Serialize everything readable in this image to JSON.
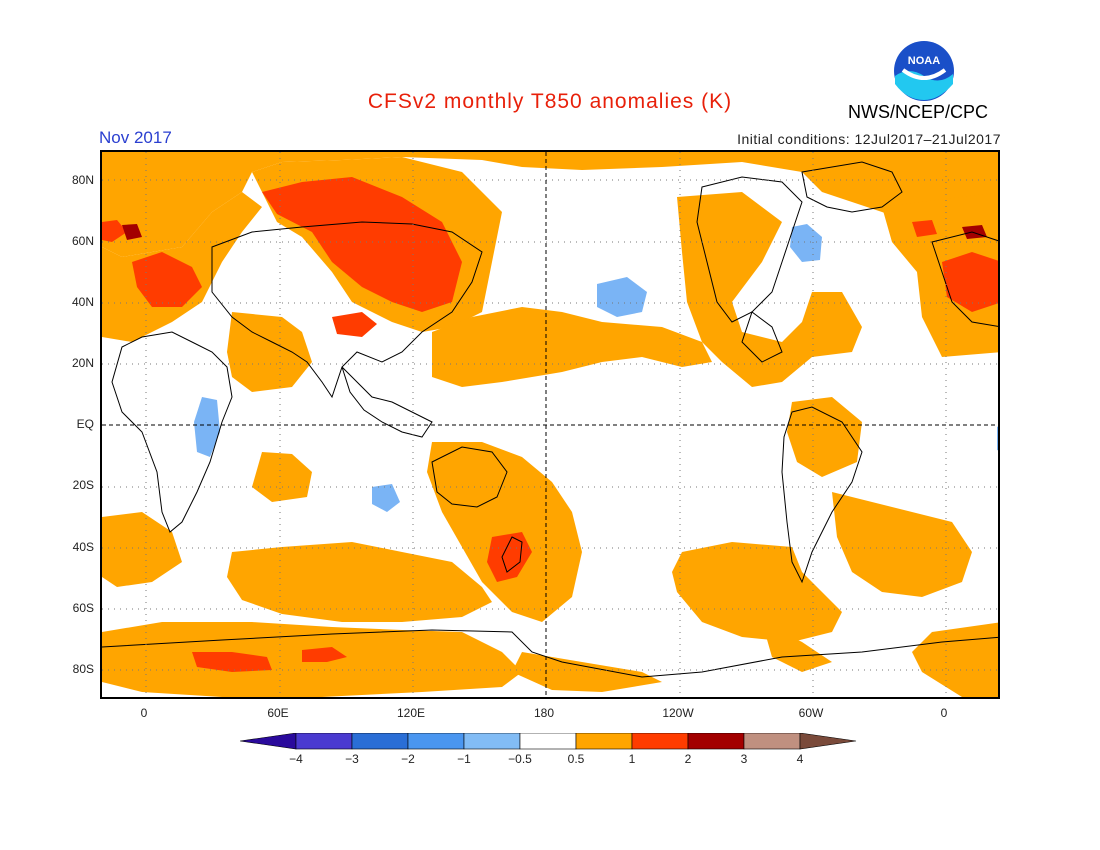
{
  "title": "CFSv2 monthly T850 anomalies (K)",
  "month": "Nov 2017",
  "initial_conditions": "Initial conditions: 12Jul2017–21Jul2017",
  "organization": "NWS/NCEP/CPC",
  "logo": {
    "text": "NOAA"
  },
  "colors": {
    "weak_warm": "#ffa500",
    "warm": "#ff3c00",
    "hot": "#a30000",
    "weak_cool": "#7ab4f5",
    "cool": "#3c8cf0"
  },
  "y_axis": {
    "labels": [
      "80N",
      "60N",
      "40N",
      "20N",
      "EQ",
      "20S",
      "40S",
      "60S",
      "80S"
    ]
  },
  "x_axis": {
    "labels": [
      "0",
      "60E",
      "120E",
      "180",
      "120W",
      "60W",
      "0"
    ]
  },
  "colorbar": {
    "labels": [
      "−4",
      "−3",
      "−2",
      "−1",
      "−0.5",
      "0.5",
      "1",
      "2",
      "3",
      "4"
    ],
    "colors": [
      "#2a0a9c",
      "#4a3ad0",
      "#2a6ed6",
      "#4a96f0",
      "#82bcf5",
      "#ffffff",
      "#ffa500",
      "#ff3c00",
      "#a30000",
      "#c09080",
      "#7a4a3a"
    ]
  }
}
